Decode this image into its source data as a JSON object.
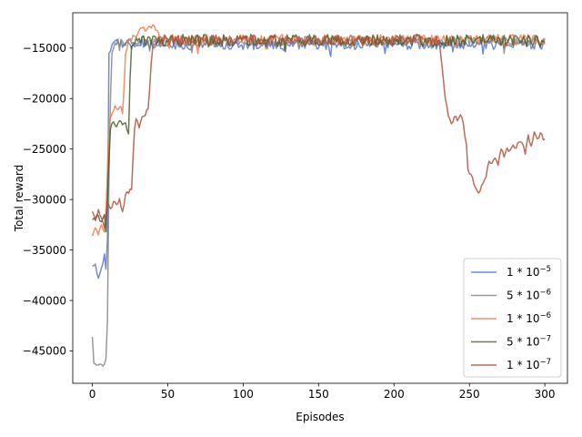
{
  "chart_data": {
    "type": "line",
    "title": "",
    "xlabel": "Episodes",
    "ylabel": "Total reward",
    "xlim": [
      -13,
      315
    ],
    "ylim": [
      -48200,
      -11500
    ],
    "x_ticks": [
      0,
      50,
      100,
      150,
      200,
      250,
      300
    ],
    "x_tick_labels": [
      "0",
      "50",
      "100",
      "150",
      "200",
      "250",
      "300"
    ],
    "y_ticks": [
      -45000,
      -40000,
      -35000,
      -30000,
      -25000,
      -20000,
      -15000
    ],
    "y_tick_labels": [
      "−45000",
      "−40000",
      "−35000",
      "−30000",
      "−25000",
      "−20000",
      "−15000"
    ],
    "grid": false,
    "legend_position": "lower right",
    "series": [
      {
        "name": "1*10^-5",
        "label_base": "1 * 10",
        "label_exp": "−5",
        "color": "#4a6fd1",
        "opacity": 0.8,
        "anchors": [
          [
            0,
            -36600
          ],
          [
            2,
            -36400
          ],
          [
            4,
            -37800
          ],
          [
            6,
            -36800
          ],
          [
            8,
            -35400
          ],
          [
            9,
            -36900
          ],
          [
            10,
            -34000
          ],
          [
            11,
            -15500
          ],
          [
            12,
            -15300
          ],
          [
            13,
            -14700
          ],
          [
            15,
            -14300
          ],
          [
            300,
            -14600
          ]
        ],
        "steady": {
          "from": 15,
          "mean": -14650,
          "amp": 500
        }
      },
      {
        "name": "5*10^-6",
        "label_base": "5 * 10",
        "label_exp": "−6",
        "color": "#7f7f7f",
        "opacity": 0.8,
        "anchors": [
          [
            0,
            -43600
          ],
          [
            1,
            -46200
          ],
          [
            3,
            -46400
          ],
          [
            5,
            -46300
          ],
          [
            7,
            -46500
          ],
          [
            9,
            -45800
          ],
          [
            10,
            -42000
          ],
          [
            11,
            -28000
          ],
          [
            12,
            -20000
          ],
          [
            13,
            -15500
          ],
          [
            15,
            -14500
          ],
          [
            300,
            -14200
          ]
        ],
        "steady": {
          "from": 15,
          "mean": -14300,
          "amp": 500
        }
      },
      {
        "name": "1*10^-6",
        "label_base": "1 * 10",
        "label_exp": "−6",
        "color": "#ee7c50",
        "opacity": 0.85,
        "anchors": [
          [
            0,
            -33600
          ],
          [
            2,
            -32800
          ],
          [
            4,
            -33500
          ],
          [
            6,
            -32500
          ],
          [
            8,
            -33200
          ],
          [
            9,
            -31500
          ],
          [
            10,
            -27000
          ],
          [
            11,
            -22000
          ],
          [
            13,
            -21500
          ],
          [
            15,
            -20700
          ],
          [
            17,
            -21100
          ],
          [
            19,
            -20800
          ],
          [
            20,
            -21500
          ],
          [
            21,
            -19000
          ],
          [
            22,
            -15500
          ],
          [
            24,
            -14200
          ],
          [
            30,
            -13600
          ],
          [
            32,
            -13000
          ],
          [
            36,
            -13200
          ],
          [
            40,
            -12700
          ],
          [
            44,
            -13500
          ],
          [
            46,
            -14800
          ],
          [
            60,
            -14300
          ],
          [
            300,
            -14000
          ]
        ],
        "steady": {
          "from": 46,
          "mean": -14200,
          "amp": 550
        }
      },
      {
        "name": "5*10^-7",
        "label_base": "5 * 10",
        "label_exp": "−7",
        "color": "#445a1e",
        "opacity": 0.8,
        "anchors": [
          [
            0,
            -32000
          ],
          [
            2,
            -31900
          ],
          [
            4,
            -31600
          ],
          [
            6,
            -32200
          ],
          [
            8,
            -31500
          ],
          [
            9,
            -33200
          ],
          [
            10,
            -30000
          ],
          [
            11,
            -26000
          ],
          [
            12,
            -23000
          ],
          [
            14,
            -22300
          ],
          [
            16,
            -22800
          ],
          [
            18,
            -22200
          ],
          [
            20,
            -22600
          ],
          [
            22,
            -22400
          ],
          [
            24,
            -23500
          ],
          [
            25,
            -18000
          ],
          [
            26,
            -14800
          ],
          [
            30,
            -14300
          ],
          [
            300,
            -14400
          ]
        ],
        "steady": {
          "from": 26,
          "mean": -14250,
          "amp": 600
        }
      },
      {
        "name": "1*10^-7",
        "label_base": "1 * 10",
        "label_exp": "−7",
        "color": "#b0523d",
        "opacity": 0.85,
        "anchors": [
          [
            0,
            -31200
          ],
          [
            2,
            -32100
          ],
          [
            4,
            -31000
          ],
          [
            6,
            -31800
          ],
          [
            8,
            -32800
          ],
          [
            10,
            -30300
          ],
          [
            12,
            -30900
          ],
          [
            14,
            -30200
          ],
          [
            16,
            -30500
          ],
          [
            18,
            -29900
          ],
          [
            20,
            -31200
          ],
          [
            22,
            -29500
          ],
          [
            24,
            -29400
          ],
          [
            26,
            -29000
          ],
          [
            28,
            -23000
          ],
          [
            29,
            -22000
          ],
          [
            31,
            -22900
          ],
          [
            33,
            -21800
          ],
          [
            35,
            -21700
          ],
          [
            37,
            -21000
          ],
          [
            38,
            -19000
          ],
          [
            39,
            -16500
          ],
          [
            40,
            -15000
          ],
          [
            42,
            -14600
          ],
          [
            230,
            -14200
          ],
          [
            232,
            -17000
          ],
          [
            234,
            -20000
          ],
          [
            236,
            -21700
          ],
          [
            238,
            -22500
          ],
          [
            240,
            -21800
          ],
          [
            242,
            -22200
          ],
          [
            244,
            -21600
          ],
          [
            246,
            -22500
          ],
          [
            248,
            -24500
          ],
          [
            249,
            -27000
          ],
          [
            251,
            -27500
          ],
          [
            253,
            -28500
          ],
          [
            255,
            -29100
          ],
          [
            257,
            -29200
          ],
          [
            259,
            -28400
          ],
          [
            261,
            -27800
          ],
          [
            263,
            -26200
          ],
          [
            265,
            -26400
          ],
          [
            267,
            -25900
          ],
          [
            269,
            -26600
          ],
          [
            271,
            -25000
          ],
          [
            273,
            -25800
          ],
          [
            275,
            -24900
          ],
          [
            277,
            -25100
          ],
          [
            279,
            -24600
          ],
          [
            281,
            -24900
          ],
          [
            283,
            -24300
          ],
          [
            285,
            -24400
          ],
          [
            287,
            -25500
          ],
          [
            289,
            -23600
          ],
          [
            291,
            -24700
          ],
          [
            293,
            -23300
          ],
          [
            295,
            -24000
          ],
          [
            297,
            -23400
          ],
          [
            299,
            -24100
          ]
        ],
        "steady": {
          "from": 42,
          "to": 230,
          "mean": -14200,
          "amp": 500
        }
      }
    ]
  }
}
